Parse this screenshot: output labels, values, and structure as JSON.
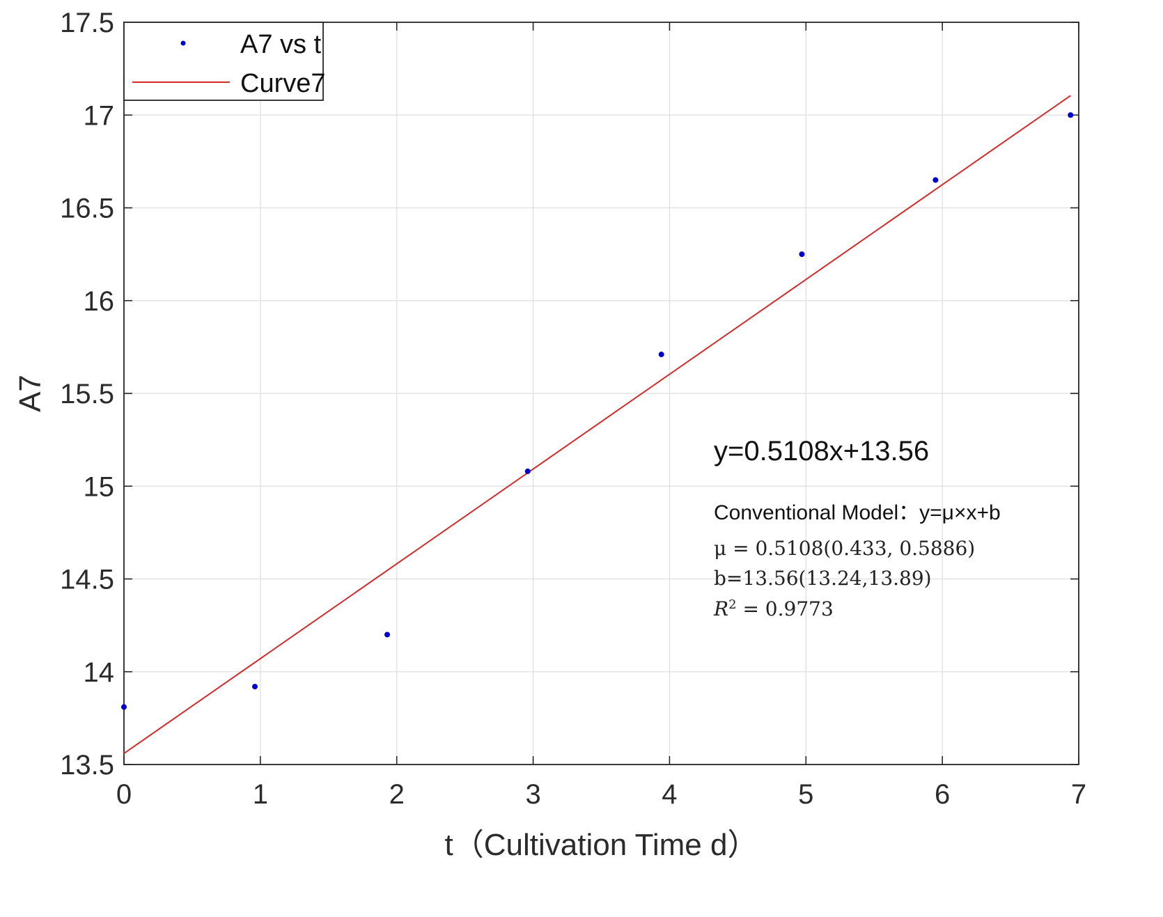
{
  "chart_data": {
    "type": "scatter",
    "title": "",
    "xlabel": "t（Cultivation Time d）",
    "ylabel": "A7",
    "xlim": [
      0,
      7
    ],
    "ylim": [
      13.5,
      17.5
    ],
    "xticks": [
      0,
      1,
      2,
      3,
      4,
      5,
      6,
      7
    ],
    "yticks": [
      13.5,
      14,
      14.5,
      15,
      15.5,
      16,
      16.5,
      17,
      17.5
    ],
    "xtick_labels": [
      "0",
      "1",
      "2",
      "3",
      "4",
      "5",
      "6",
      "7"
    ],
    "ytick_labels": [
      "13.5",
      "14",
      "14.5",
      "15",
      "15.5",
      "16",
      "16.5",
      "17",
      "17.5"
    ],
    "grid": true,
    "legend_position": "top-left",
    "series": [
      {
        "name": "A7 vs t",
        "kind": "points",
        "color": "#0000cc",
        "x": [
          0,
          0.96,
          1.93,
          2.96,
          3.94,
          4.97,
          5.95,
          6.94
        ],
        "y": [
          13.81,
          13.92,
          14.2,
          15.08,
          15.71,
          16.25,
          16.65,
          17.0
        ]
      },
      {
        "name": "Curve7",
        "kind": "fit-line",
        "color": "#d42a2a",
        "slope": 0.5108,
        "intercept": 13.56,
        "x_range": [
          0,
          6.94
        ]
      }
    ],
    "annotations": {
      "equation": "y=0.5108x+13.56",
      "model": "Conventional Model：y=μ×x+b",
      "mu_line": "μ = 0.5108(0.433, 0.5886)",
      "b_line": "b=13.56(13.24,13.89)",
      "r2_prefix": "R",
      "r2_sup": "2",
      "r2_suffix": " = 0.9773"
    }
  }
}
